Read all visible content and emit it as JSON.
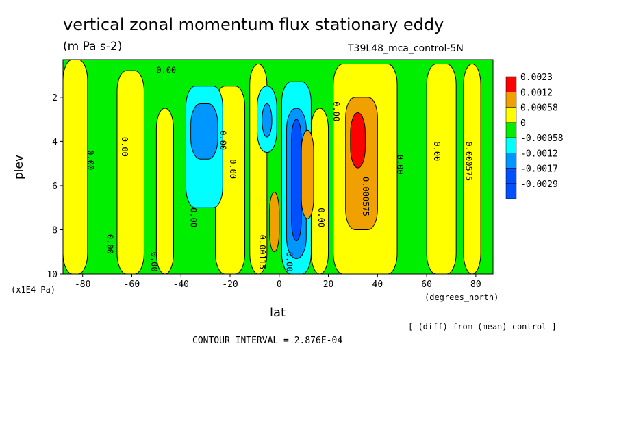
{
  "title": "vertical zonal momentum flux stationary eddy",
  "units": "(m Pa s-2)",
  "run_label": "T39L48_mca_control-5N",
  "diff_note": "[ (diff) from (mean) control ]",
  "contour_interval": "CONTOUR INTERVAL = 2.876E-04",
  "colors": {
    "red": "#ff0000",
    "orange": "#f0a000",
    "yellow": "#ffff00",
    "green": "#00ee00",
    "cyan": "#00ffff",
    "lightblue": "#0096ff",
    "blue": "#0050ff"
  },
  "chart_data": {
    "type": "heatmap",
    "xlabel": "lat",
    "ylabel": "plev",
    "x_units": "(degrees_north)",
    "y_units": "(x1E4 Pa)",
    "xlim": [
      -88,
      87
    ],
    "ylim": [
      10,
      0.3
    ],
    "x_ticks": [
      "-80",
      "-60",
      "-40",
      "-20",
      "0",
      "20",
      "40",
      "60",
      "80"
    ],
    "y_ticks": [
      "2",
      "4",
      "6",
      "8",
      "10"
    ],
    "colorbar": [
      {
        "label": "0.0023",
        "color": "#ff0000"
      },
      {
        "label": "0.0012",
        "color": "#f0a000"
      },
      {
        "label": "0.00058",
        "color": "#ffff00"
      },
      {
        "label": "0",
        "color": "#00ee00"
      },
      {
        "label": "-0.00058",
        "color": "#00ffff"
      },
      {
        "label": "-0.0012",
        "color": "#0096ff"
      },
      {
        "label": "-0.0017",
        "color": "#0050ff"
      },
      {
        "label": "-0.0029",
        "color": "#0050ff"
      }
    ],
    "contour_labels": [
      "0.00",
      "0.00",
      "0.00",
      "0.00",
      "0.00",
      "0.00",
      "0.00",
      "0.00",
      "0.00",
      "0.00",
      "0.00",
      "0.00",
      "0.00",
      "0.000575",
      "0.000575",
      "-0.00115"
    ],
    "regions": [
      {
        "fill": "#ffff00",
        "lat": [
          -88,
          -78
        ],
        "p": [
          0.3,
          10
        ]
      },
      {
        "fill": "#ffff00",
        "lat": [
          -66,
          -55
        ],
        "p": [
          0.8,
          10
        ]
      },
      {
        "fill": "#ffff00",
        "lat": [
          -50,
          -43
        ],
        "p": [
          2.5,
          10
        ]
      },
      {
        "fill": "#ffff00",
        "lat": [
          -26,
          -14
        ],
        "p": [
          1.5,
          10
        ]
      },
      {
        "fill": "#ffff00",
        "lat": [
          -12,
          -5
        ],
        "p": [
          0.5,
          10
        ]
      },
      {
        "fill": "#ffff00",
        "lat": [
          13,
          20
        ],
        "p": [
          2.5,
          10
        ]
      },
      {
        "fill": "#ffff00",
        "lat": [
          22,
          48
        ],
        "p": [
          0.5,
          10
        ]
      },
      {
        "fill": "#ffff00",
        "lat": [
          60,
          72
        ],
        "p": [
          0.5,
          10
        ]
      },
      {
        "fill": "#ffff00",
        "lat": [
          75,
          82
        ],
        "p": [
          0.5,
          10
        ]
      },
      {
        "fill": "#00ffff",
        "lat": [
          -38,
          -23
        ],
        "p": [
          1.5,
          7
        ]
      },
      {
        "fill": "#0096ff",
        "lat": [
          -36,
          -25
        ],
        "p": [
          2.3,
          4.8
        ]
      },
      {
        "fill": "#00ffff",
        "lat": [
          -9,
          -1
        ],
        "p": [
          1.5,
          4.5
        ]
      },
      {
        "fill": "#0096ff",
        "lat": [
          -7,
          -3
        ],
        "p": [
          2.3,
          3.8
        ]
      },
      {
        "fill": "#00ffff",
        "lat": [
          1,
          13
        ],
        "p": [
          1.3,
          10
        ]
      },
      {
        "fill": "#0096ff",
        "lat": [
          3,
          11
        ],
        "p": [
          2.5,
          9.3
        ]
      },
      {
        "fill": "#0050ff",
        "lat": [
          5,
          9
        ],
        "p": [
          3,
          8.5
        ]
      },
      {
        "fill": "#f0a000",
        "lat": [
          27,
          40
        ],
        "p": [
          2,
          8
        ]
      },
      {
        "fill": "#ff0000",
        "lat": [
          29,
          35
        ],
        "p": [
          2.7,
          5.2
        ]
      },
      {
        "fill": "#f0a000",
        "lat": [
          -4,
          0
        ],
        "p": [
          6.3,
          9
        ]
      },
      {
        "fill": "#f0a000",
        "lat": [
          9,
          14
        ],
        "p": [
          3.5,
          7.5
        ]
      }
    ]
  }
}
